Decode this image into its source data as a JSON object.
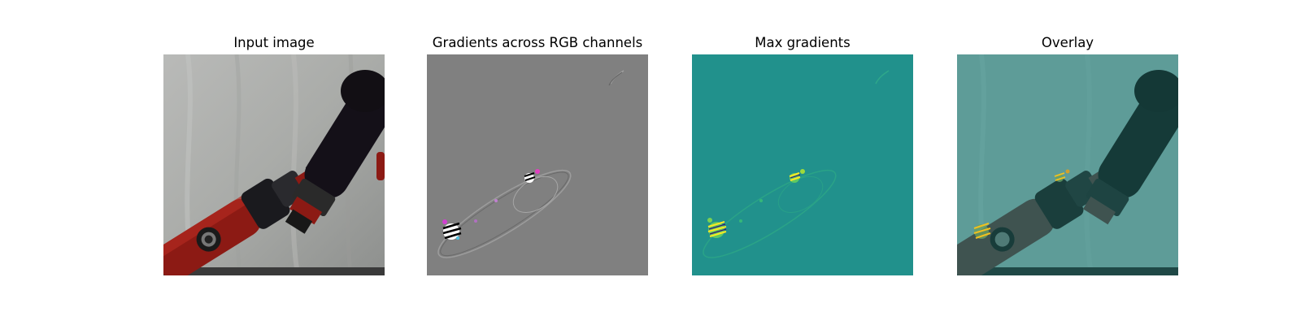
{
  "figure": {
    "panels": [
      {
        "id": "input",
        "title": "Input image"
      },
      {
        "id": "rgb-gradients",
        "title": "Gradients across RGB channels"
      },
      {
        "id": "max-gradients",
        "title": "Max gradients"
      },
      {
        "id": "overlay",
        "title": "Overlay"
      }
    ]
  },
  "colors": {
    "background": "#ffffff",
    "gradient_gray": "#808080",
    "viridis_base": "#21918c",
    "viridis_high": "#fde725",
    "overlay_tint": "#2a8a85"
  }
}
